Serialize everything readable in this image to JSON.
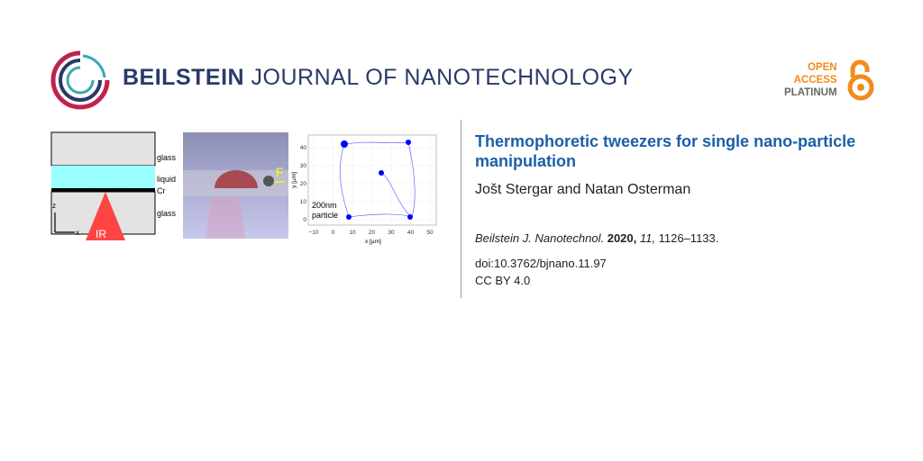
{
  "header": {
    "journal_bold": "BEILSTEIN",
    "journal_rest": "JOURNAL OF NANOTECHNOLOGY",
    "open_access": [
      "OPEN",
      "ACCESS",
      "PLATINUM"
    ],
    "colors": {
      "navy": "#283a68",
      "orange": "#f28a1c",
      "gray": "#666666",
      "title_blue": "#1b5fa8"
    }
  },
  "graphical_abstract": {
    "schematic_labels": [
      "glass",
      "liquid",
      "Cr",
      "glass"
    ],
    "axis_z": "z",
    "axis_x": "x",
    "ir_label": "IR",
    "force_label": "F",
    "plot": {
      "xlabel": "x [µm]",
      "ylabel": "y [µm]",
      "xticks": [
        "−10",
        "0",
        "10",
        "20",
        "30",
        "40",
        "50"
      ],
      "yticks": [
        "0",
        "10",
        "20",
        "30",
        "40"
      ],
      "annotation": [
        "200nm",
        "particle"
      ]
    }
  },
  "article": {
    "title": "Thermophoretic tweezers for single nano-particle manipulation",
    "authors": "Jošt Stergar and Natan Osterman",
    "journal_abbr": "Beilstein J. Nanotechnol.",
    "year": "2020,",
    "volume": "11,",
    "pages": "1126–1133.",
    "doi": "doi:10.3762/bjnano.11.97",
    "license": "CC BY 4.0"
  }
}
